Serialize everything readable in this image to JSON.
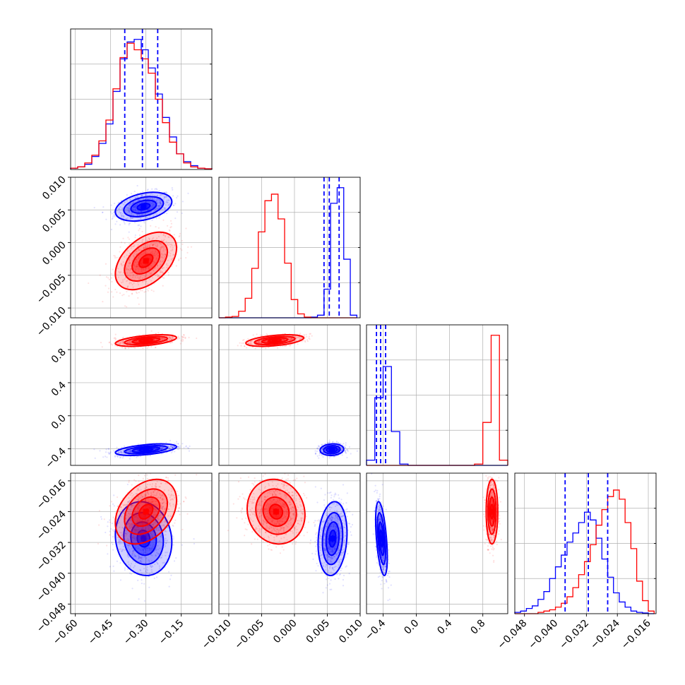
{
  "chart_data": {
    "type": "corner",
    "grid": true,
    "series_colors": {
      "blue": "#0000ff",
      "red": "#ff0000"
    },
    "parameters": [
      {
        "id": "p1",
        "range": [
          -0.62,
          -0.02
        ],
        "ticks": [
          -0.6,
          -0.45,
          -0.3,
          -0.15
        ],
        "tick_labels": [
          "−0.60",
          "−0.45",
          "−0.30",
          "−0.15"
        ]
      },
      {
        "id": "p2",
        "range": [
          -0.0115,
          0.01
        ],
        "ticks": [
          -0.01,
          -0.005,
          0.0,
          0.005,
          0.01
        ],
        "tick_labels": [
          "−0.010",
          "−0.005",
          "0.000",
          "0.005",
          "0.010"
        ]
      },
      {
        "id": "p3",
        "range": [
          -0.6,
          1.1
        ],
        "ticks": [
          -0.4,
          0.0,
          0.4,
          0.8
        ],
        "tick_labels": [
          "−0.4",
          "0.0",
          "0.4",
          "0.8"
        ]
      },
      {
        "id": "p4",
        "range": [
          -0.0505,
          -0.014
        ],
        "ticks": [
          -0.048,
          -0.04,
          -0.032,
          -0.024,
          -0.016
        ],
        "tick_labels": [
          "−0.048",
          "−0.040",
          "−0.032",
          "−0.024",
          "−0.016"
        ]
      }
    ],
    "marginals": [
      {
        "param": 0,
        "edges": [
          -0.62,
          -0.59,
          -0.56,
          -0.53,
          -0.5,
          -0.47,
          -0.44,
          -0.41,
          -0.38,
          -0.35,
          -0.32,
          -0.29,
          -0.26,
          -0.23,
          -0.2,
          -0.17,
          -0.14,
          -0.11,
          -0.08,
          -0.05,
          -0.02
        ],
        "blue": [
          1,
          2,
          4,
          10,
          20,
          35,
          60,
          85,
          98,
          100,
          92,
          78,
          58,
          40,
          25,
          12,
          6,
          3,
          1,
          0.5
        ],
        "red": [
          1,
          2,
          5,
          11,
          22,
          38,
          62,
          86,
          97,
          92,
          85,
          74,
          54,
          36,
          21,
          12,
          5,
          2,
          1,
          0.5
        ],
        "quantile_lines": [
          -0.39,
          -0.315,
          -0.25
        ],
        "quantile_color": "#0000ff",
        "ymax": 108
      },
      {
        "param": 1,
        "edges": [
          -0.0115,
          -0.0105,
          -0.0095,
          -0.0085,
          -0.0075,
          -0.0065,
          -0.0055,
          -0.0045,
          -0.0035,
          -0.0025,
          -0.0015,
          -0.0005,
          0.0005,
          0.0015,
          0.0025,
          0.0035,
          0.0045,
          0.0055,
          0.0065,
          0.0075,
          0.0085,
          0.0095
        ],
        "blue": [
          0,
          0,
          0,
          0,
          0,
          0,
          0,
          0,
          0,
          0,
          0,
          0,
          0,
          0,
          0.5,
          2,
          22,
          88,
          100,
          45,
          2,
          0.2
        ],
        "red": [
          0,
          0.5,
          1,
          5,
          15,
          38,
          66,
          90,
          95,
          76,
          42,
          14,
          3,
          0.5,
          0,
          0,
          0,
          0,
          0,
          0,
          0,
          0
        ],
        "quantile_lines": [
          0.0045,
          0.0053,
          0.0068
        ],
        "quantile_color": "#0000ff",
        "ymax": 108
      },
      {
        "param": 2,
        "edges": [
          -0.6,
          -0.5,
          -0.4,
          -0.3,
          -0.2,
          -0.1,
          0.0,
          0.1,
          0.2,
          0.3,
          0.4,
          0.5,
          0.6,
          0.7,
          0.8,
          0.9,
          1.0,
          1.1
        ],
        "blue": [
          4,
          52,
          76,
          26,
          1,
          0,
          0,
          0,
          0,
          0,
          0,
          0,
          0,
          0,
          0,
          0,
          0
        ],
        "red": [
          0,
          0,
          0,
          0,
          0,
          0,
          0,
          0,
          0,
          0,
          0,
          0,
          0,
          1,
          33,
          100,
          4
        ],
        "quantile_lines": [
          -0.48,
          -0.43,
          -0.37
        ],
        "quantile_color": "#0000ff",
        "ymax": 108
      },
      {
        "param": 3,
        "edges": [
          -0.0505,
          -0.049,
          -0.0475,
          -0.046,
          -0.0445,
          -0.043,
          -0.0415,
          -0.04,
          -0.0385,
          -0.037,
          -0.0355,
          -0.034,
          -0.0325,
          -0.031,
          -0.0295,
          -0.028,
          -0.0265,
          -0.025,
          -0.0235,
          -0.022,
          -0.0205,
          -0.019,
          -0.0175,
          -0.016,
          -0.0145
        ],
        "blue": [
          1,
          2,
          4,
          6,
          11,
          17,
          27,
          36,
          45,
          55,
          62,
          70,
          78,
          72,
          58,
          42,
          28,
          16,
          9,
          5,
          2,
          1,
          0.5,
          0
        ],
        "red": [
          0,
          0,
          0,
          0,
          1,
          2,
          3,
          5,
          8,
          13,
          20,
          30,
          40,
          53,
          68,
          80,
          90,
          95,
          88,
          70,
          50,
          25,
          10,
          2
        ],
        "quantile_lines": [
          -0.0375,
          -0.0315,
          -0.0265
        ],
        "quantile_color": "#0000ff",
        "ymax": 108
      }
    ],
    "joint": [
      {
        "x": 0,
        "y": 1,
        "blue": {
          "mean": [
            -0.31,
            0.0055
          ],
          "sd": [
            0.06,
            0.0011
          ],
          "rho": 0.35
        },
        "red": {
          "mean": [
            -0.3,
            -0.0028
          ],
          "sd": [
            0.065,
            0.0022
          ],
          "rho": 0.45
        }
      },
      {
        "x": 0,
        "y": 2,
        "blue": {
          "mean": [
            -0.3,
            -0.41
          ],
          "sd": [
            0.065,
            0.035
          ],
          "rho": 0.5
        },
        "red": {
          "mean": [
            -0.3,
            0.91
          ],
          "sd": [
            0.065,
            0.035
          ],
          "rho": 0.5
        }
      },
      {
        "x": 1,
        "y": 2,
        "blue": {
          "mean": [
            0.0057,
            -0.41
          ],
          "sd": [
            0.0009,
            0.035
          ],
          "rho": 0.1
        },
        "red": {
          "mean": [
            -0.003,
            0.91
          ],
          "sd": [
            0.0022,
            0.035
          ],
          "rho": 0.45
        }
      },
      {
        "x": 0,
        "y": 3,
        "blue": {
          "mean": [
            -0.31,
            -0.031
          ],
          "sd": [
            0.06,
            0.0048
          ],
          "rho": -0.1
        },
        "red": {
          "mean": [
            -0.3,
            -0.024
          ],
          "sd": [
            0.065,
            0.0042
          ],
          "rho": 0.35
        }
      },
      {
        "x": 1,
        "y": 3,
        "blue": {
          "mean": [
            0.0058,
            -0.031
          ],
          "sd": [
            0.0011,
            0.0048
          ],
          "rho": 0.15
        },
        "red": {
          "mean": [
            -0.0028,
            -0.024
          ],
          "sd": [
            0.0022,
            0.0042
          ],
          "rho": -0.1
        }
      },
      {
        "x": 2,
        "y": 3,
        "blue": {
          "mean": [
            -0.42,
            -0.031
          ],
          "sd": [
            0.035,
            0.0048
          ],
          "rho": -0.5
        },
        "red": {
          "mean": [
            0.91,
            -0.024
          ],
          "sd": [
            0.035,
            0.0042
          ],
          "rho": 0.0
        }
      }
    ]
  }
}
